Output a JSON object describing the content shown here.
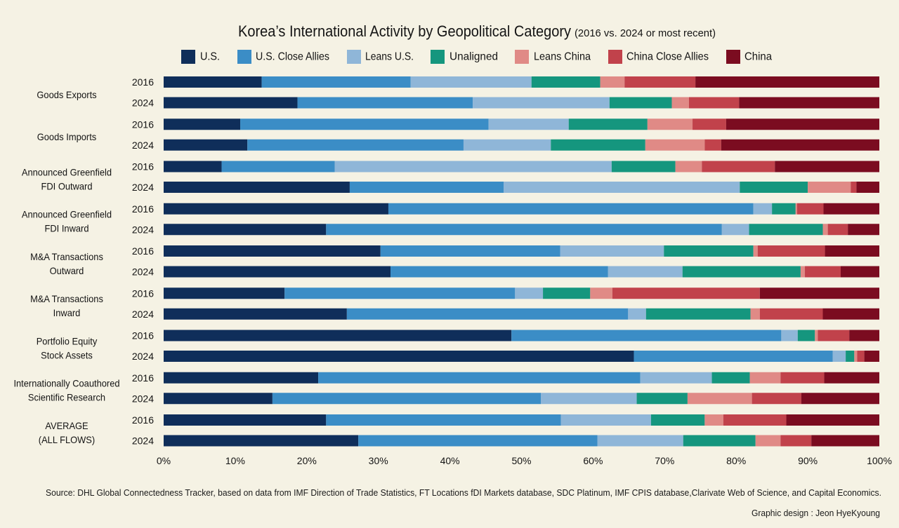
{
  "colors": {
    "background": "#f5f2e4"
  },
  "source": "Source: DHL Global Connectedness Tracker, based on data from IMF Direction of Trade Statistics, FT Locations fDI Markets database, SDC Platinum, IMF CPIS database,Clarivate Web of Science, and Capital Economics.",
  "credit": "Graphic design : Jeon HyeKyoung",
  "chart_data": {
    "type": "bar",
    "orientation": "horizontal",
    "stacked": true,
    "title": "Korea’s International Activity by Geopolitical Category",
    "subtitle": "(2016 vs. 2024 or most recent)",
    "legend_position": "top",
    "grid": false,
    "xlim": [
      0,
      100
    ],
    "x_ticks": [
      0,
      10,
      20,
      30,
      40,
      50,
      60,
      70,
      80,
      90,
      100
    ],
    "x_tick_labels": [
      "0%",
      "10%",
      "20%",
      "30%",
      "40%",
      "50%",
      "60%",
      "70%",
      "80%",
      "90%",
      "100%"
    ],
    "years": [
      "2016",
      "2024"
    ],
    "groups": [
      {
        "label": [
          "Goods Exports"
        ]
      },
      {
        "label": [
          "Goods Imports"
        ]
      },
      {
        "label": [
          "Announced Greenfield",
          "FDI Outward"
        ]
      },
      {
        "label": [
          "Announced Greenfield",
          "FDI Inward"
        ]
      },
      {
        "label": [
          "M&A Transactions",
          "Outward"
        ]
      },
      {
        "label": [
          "M&A Transactions",
          "Inward"
        ]
      },
      {
        "label": [
          "Portfolio Equity",
          "Stock Assets"
        ]
      },
      {
        "label": [
          "Internationally Coauthored",
          "Scientific Research"
        ]
      },
      {
        "label": [
          "AVERAGE",
          "(ALL FLOWS)"
        ]
      }
    ],
    "series": [
      {
        "name": "U.S.",
        "color": "#0f2e5a",
        "values": [
          [
            13.7,
            18.7
          ],
          [
            10.7,
            11.7
          ],
          [
            8.1,
            26.0
          ],
          [
            31.4,
            22.7
          ],
          [
            30.3,
            31.7
          ],
          [
            16.9,
            25.6
          ],
          [
            48.6,
            65.7
          ],
          [
            21.6,
            15.2
          ],
          [
            22.7,
            27.2
          ]
        ]
      },
      {
        "name": "U.S. Close Allies",
        "color": "#3b8dc6",
        "values": [
          [
            20.8,
            24.5
          ],
          [
            34.7,
            30.2
          ],
          [
            15.8,
            21.5
          ],
          [
            51.0,
            55.3
          ],
          [
            25.1,
            30.4
          ],
          [
            32.2,
            39.3
          ],
          [
            37.7,
            27.8
          ],
          [
            45.0,
            37.5
          ],
          [
            32.8,
            33.4
          ]
        ]
      },
      {
        "name": "Leans U.S.",
        "color": "#8fb6d8",
        "values": [
          [
            16.9,
            19.1
          ],
          [
            11.2,
            12.2
          ],
          [
            38.7,
            33.0
          ],
          [
            2.6,
            3.8
          ],
          [
            14.5,
            10.4
          ],
          [
            3.9,
            2.5
          ],
          [
            2.3,
            1.8
          ],
          [
            10.0,
            13.4
          ],
          [
            12.6,
            12.0
          ]
        ]
      },
      {
        "name": "Unaligned",
        "color": "#15967e",
        "values": [
          [
            9.6,
            8.7
          ],
          [
            11.0,
            13.2
          ],
          [
            8.9,
            9.5
          ],
          [
            3.3,
            10.3
          ],
          [
            12.5,
            16.5
          ],
          [
            6.6,
            14.6
          ],
          [
            2.4,
            1.2
          ],
          [
            5.3,
            7.1
          ],
          [
            7.5,
            10.1
          ]
        ]
      },
      {
        "name": "Leans China",
        "color": "#e08a86",
        "values": [
          [
            3.4,
            2.4
          ],
          [
            6.3,
            8.3
          ],
          [
            3.7,
            6.0
          ],
          [
            0.2,
            0.7
          ],
          [
            0.6,
            0.6
          ],
          [
            3.1,
            1.3
          ],
          [
            0.4,
            0.4
          ],
          [
            4.3,
            9.0
          ],
          [
            2.6,
            3.5
          ]
        ]
      },
      {
        "name": "China Close Allies",
        "color": "#c1424b",
        "values": [
          [
            9.9,
            7.0
          ],
          [
            4.7,
            2.3
          ],
          [
            10.2,
            0.8
          ],
          [
            3.7,
            2.8
          ],
          [
            9.4,
            5.0
          ],
          [
            20.6,
            8.8
          ],
          [
            4.4,
            1.0
          ],
          [
            6.1,
            6.9
          ],
          [
            8.8,
            4.3
          ]
        ]
      },
      {
        "name": "China",
        "color": "#7b0c20",
        "values": [
          [
            25.7,
            19.6
          ],
          [
            21.4,
            22.1
          ],
          [
            14.6,
            3.2
          ],
          [
            7.8,
            4.4
          ],
          [
            7.6,
            5.4
          ],
          [
            16.7,
            7.9
          ],
          [
            4.2,
            2.1
          ],
          [
            7.7,
            10.9
          ],
          [
            13.0,
            9.5
          ]
        ]
      }
    ]
  }
}
